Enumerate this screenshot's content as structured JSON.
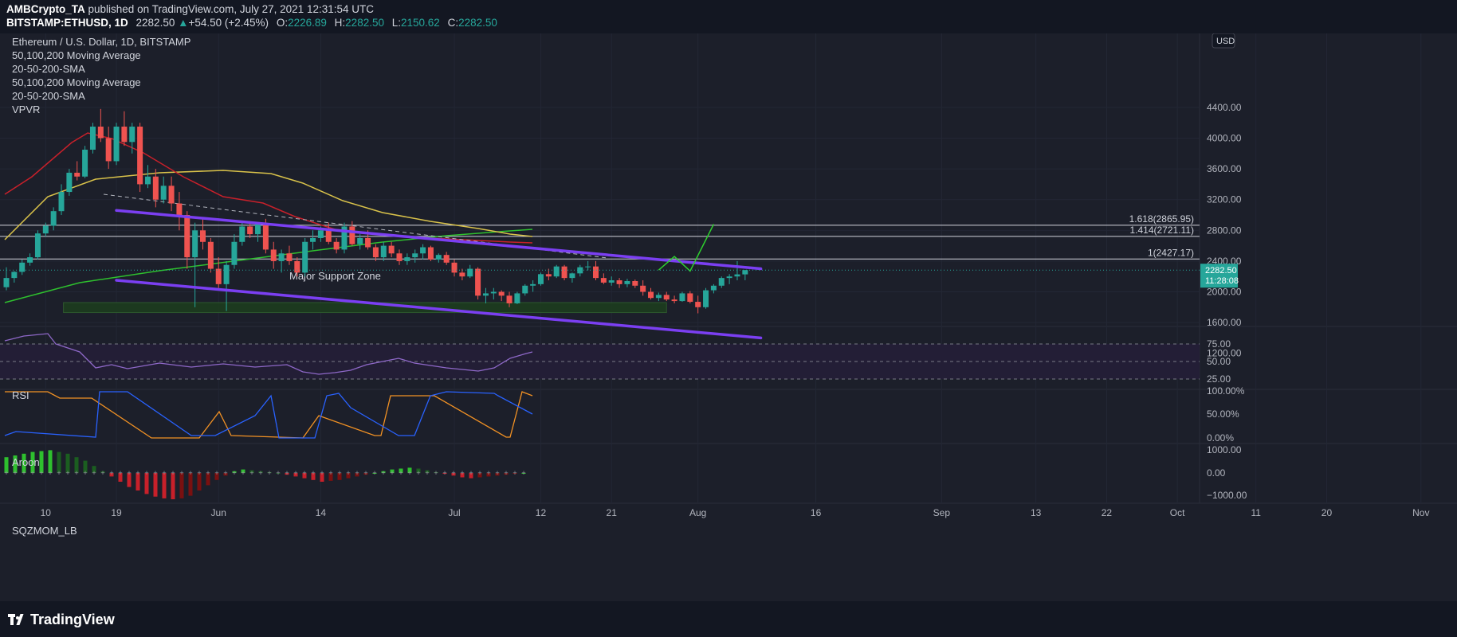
{
  "header": {
    "publisher": "AMBCrypto_TA",
    "published_text": "published on TradingView.com, July 27, 2021 12:31:54 UTC",
    "symbol": "BITSTAMP:ETHUSD, 1D",
    "last": "2282.50",
    "change": "+54.50 (+2.45%)",
    "open_label": "O:",
    "open": "2226.89",
    "high_label": "H:",
    "high": "2282.50",
    "low_label": "L:",
    "low": "2150.62",
    "close_label": "C:",
    "close": "2282.50"
  },
  "legend": {
    "title": "Ethereum / U.S. Dollar, 1D, BITSTAMP",
    "ma1": "50,100,200 Moving Average",
    "sma1": "20-50-200-SMA",
    "ma2": "50,100,200 Moving Average",
    "sma2": "20-50-200-SMA",
    "vpvr": "VPVR"
  },
  "colors": {
    "bull": "#26a69a",
    "bear": "#ef5350",
    "channel": "#7b3ff2",
    "ma_yellow": "#d9c24a",
    "ma_red": "#c8202a",
    "ma_green": "#2ec02e",
    "rsi": "#8e68c8",
    "aroon_up": "#f39224",
    "aroon_down": "#2962ff",
    "projection": "#2ed12e"
  },
  "price_axis": {
    "currency": "USD",
    "ticks": [
      "4400.00",
      "4000.00",
      "3600.00",
      "3200.00",
      "2800.00",
      "2400.00",
      "2000.00",
      "1600.00",
      "1200.00"
    ]
  },
  "price_badge": {
    "price": "2282.50",
    "countdown": "11:28:08"
  },
  "time_axis": {
    "labels": [
      "10",
      "19",
      "Jun",
      "14",
      "Jul",
      "12",
      "21",
      "Aug",
      "16",
      "Sep",
      "13",
      "22",
      "Oct",
      "11",
      "20",
      "Nov"
    ]
  },
  "fib_levels": [
    {
      "label": "1.618(2865.95)",
      "value": 2865.95
    },
    {
      "label": "1.414(2721.11)",
      "value": 2721.11
    },
    {
      "label": "1(2427.17)",
      "value": 2427.17
    }
  ],
  "support_label": "Major Support Zone",
  "rsi_pane": {
    "title": "RSI",
    "ticks": [
      "75.00",
      "50.00",
      "25.00"
    ]
  },
  "aroon_pane": {
    "title": "Aroon",
    "ticks": [
      "100.00%",
      "50.00%",
      "0.00%"
    ]
  },
  "sqz_pane": {
    "title": "SQZMOM_LB",
    "ticks": [
      "1000.00",
      "0.00",
      "−1000.00"
    ]
  },
  "brand": "TradingView",
  "chart_data": {
    "type": "candlestick",
    "title": "Ethereum / U.S. Dollar, 1D, BITSTAMP",
    "start_date": "2021-05-05",
    "y_axis": {
      "min": 1000,
      "max": 4600,
      "unit": "USD"
    },
    "candles": [
      [
        2060,
        2320,
        2020,
        2180
      ],
      [
        2180,
        2270,
        2120,
        2260
      ],
      [
        2260,
        2420,
        2220,
        2380
      ],
      [
        2380,
        2500,
        2340,
        2450
      ],
      [
        2450,
        2800,
        2420,
        2760
      ],
      [
        2760,
        2900,
        2720,
        2860
      ],
      [
        2860,
        3100,
        2800,
        3050
      ],
      [
        3050,
        3400,
        3000,
        3300
      ],
      [
        3300,
        3600,
        3250,
        3550
      ],
      [
        3550,
        3700,
        3450,
        3500
      ],
      [
        3500,
        3900,
        3480,
        3850
      ],
      [
        3850,
        4200,
        3800,
        4150
      ],
      [
        4150,
        4380,
        3950,
        4000
      ],
      [
        4000,
        4150,
        3600,
        3700
      ],
      [
        3700,
        4200,
        3650,
        4150
      ],
      [
        4150,
        4350,
        3900,
        3950
      ],
      [
        3950,
        4200,
        3800,
        4150
      ],
      [
        4150,
        4200,
        3300,
        3400
      ],
      [
        3400,
        3650,
        3350,
        3500
      ],
      [
        3500,
        3600,
        3100,
        3200
      ],
      [
        3200,
        3500,
        3150,
        3380
      ],
      [
        3380,
        3500,
        3050,
        3150
      ],
      [
        3150,
        3300,
        2800,
        3000
      ],
      [
        3000,
        3050,
        2300,
        2450
      ],
      [
        2450,
        2900,
        1800,
        2800
      ],
      [
        2800,
        2950,
        2550,
        2650
      ],
      [
        2650,
        2700,
        2250,
        2300
      ],
      [
        2300,
        2450,
        2050,
        2100
      ],
      [
        2100,
        2400,
        1750,
        2350
      ],
      [
        2350,
        2750,
        2300,
        2650
      ],
      [
        2650,
        2900,
        2600,
        2850
      ],
      [
        2850,
        2920,
        2700,
        2750
      ],
      [
        2750,
        2900,
        2650,
        2880
      ],
      [
        2880,
        2950,
        2500,
        2550
      ],
      [
        2550,
        2650,
        2300,
        2400
      ],
      [
        2400,
        2550,
        2250,
        2500
      ],
      [
        2500,
        2600,
        2350,
        2400
      ],
      [
        2400,
        2450,
        2200,
        2250
      ],
      [
        2250,
        2700,
        2200,
        2650
      ],
      [
        2650,
        2800,
        2550,
        2700
      ],
      [
        2700,
        2850,
        2650,
        2800
      ],
      [
        2800,
        2900,
        2620,
        2650
      ],
      [
        2650,
        2700,
        2500,
        2550
      ],
      [
        2550,
        2900,
        2500,
        2850
      ],
      [
        2850,
        2920,
        2600,
        2620
      ],
      [
        2620,
        2750,
        2550,
        2700
      ],
      [
        2700,
        2800,
        2550,
        2580
      ],
      [
        2580,
        2620,
        2400,
        2450
      ],
      [
        2450,
        2650,
        2400,
        2600
      ],
      [
        2600,
        2650,
        2450,
        2500
      ],
      [
        2500,
        2550,
        2350,
        2400
      ],
      [
        2400,
        2500,
        2350,
        2450
      ],
      [
        2450,
        2550,
        2380,
        2500
      ],
      [
        2500,
        2620,
        2420,
        2580
      ],
      [
        2580,
        2600,
        2400,
        2420
      ],
      [
        2420,
        2500,
        2380,
        2480
      ],
      [
        2480,
        2520,
        2350,
        2380
      ],
      [
        2380,
        2420,
        2200,
        2250
      ],
      [
        2250,
        2300,
        2150,
        2200
      ],
      [
        2200,
        2350,
        2180,
        2300
      ],
      [
        2300,
        2320,
        1900,
        1950
      ],
      [
        1950,
        2050,
        1850,
        1980
      ],
      [
        1980,
        2050,
        1900,
        2000
      ],
      [
        2000,
        2020,
        1880,
        1950
      ],
      [
        1950,
        2000,
        1800,
        1850
      ],
      [
        1850,
        2000,
        1840,
        1980
      ],
      [
        1980,
        2100,
        1950,
        2080
      ],
      [
        2080,
        2150,
        2000,
        2100
      ],
      [
        2100,
        2250,
        2080,
        2230
      ],
      [
        2230,
        2300,
        2150,
        2200
      ],
      [
        2200,
        2350,
        2180,
        2330
      ],
      [
        2330,
        2350,
        2150,
        2180
      ],
      [
        2180,
        2250,
        2120,
        2240
      ],
      [
        2240,
        2350,
        2200,
        2320
      ],
      [
        2320,
        2400,
        2280,
        2330
      ],
      [
        2330,
        2400,
        2150,
        2180
      ],
      [
        2180,
        2240,
        2100,
        2120
      ],
      [
        2120,
        2200,
        2080,
        2150
      ],
      [
        2150,
        2180,
        2050,
        2100
      ],
      [
        2100,
        2170,
        2060,
        2140
      ],
      [
        2140,
        2160,
        2050,
        2080
      ],
      [
        2080,
        2150,
        1950,
        2000
      ],
      [
        2000,
        2050,
        1900,
        1920
      ],
      [
        1920,
        1990,
        1880,
        1960
      ],
      [
        1960,
        2000,
        1880,
        1900
      ],
      [
        1900,
        1950,
        1850,
        1880
      ],
      [
        1880,
        2000,
        1870,
        1980
      ],
      [
        1980,
        2010,
        1850,
        1870
      ],
      [
        1870,
        1950,
        1720,
        1800
      ],
      [
        1800,
        2050,
        1780,
        2020
      ],
      [
        2020,
        2100,
        1980,
        2080
      ],
      [
        2080,
        2200,
        2050,
        2180
      ],
      [
        2180,
        2230,
        2100,
        2200
      ],
      [
        2200,
        2400,
        2150,
        2227
      ],
      [
        2227,
        2283,
        2151,
        2283
      ]
    ],
    "channel": [
      {
        "name": "upper",
        "from": [
          "2021-05-19",
          3060
        ],
        "to": [
          "2021-08-09",
          2300
        ]
      },
      {
        "name": "lower",
        "from": [
          "2021-05-19",
          2150
        ],
        "to": [
          "2021-08-09",
          1400
        ]
      }
    ],
    "projection": [
      [
        "2021-07-27",
        2283
      ],
      [
        "2021-07-29",
        2460
      ],
      [
        "2021-07-31",
        2270
      ],
      [
        "2021-08-03",
        2880
      ]
    ],
    "support_zone": {
      "from": "2021-05-15",
      "to": "2021-07-28",
      "low": 1730,
      "high": 1860
    }
  }
}
